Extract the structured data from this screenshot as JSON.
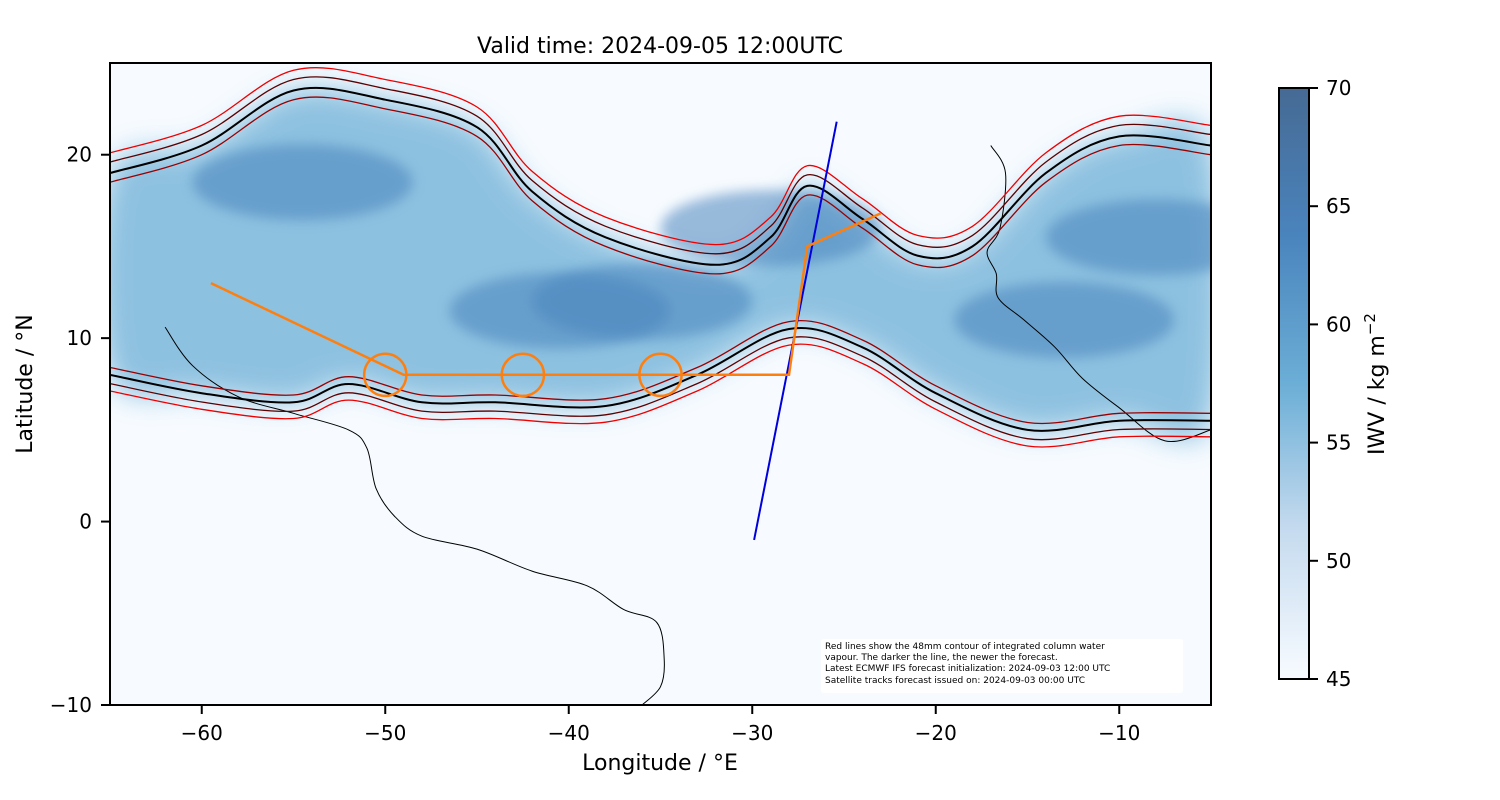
{
  "chart_data": {
    "type": "map",
    "title": "Valid time: 2024-09-05 12:00UTC",
    "xlabel": "Longitude / °E",
    "ylabel": "Latitude / °N",
    "xlim": [
      -65,
      -5
    ],
    "ylim": [
      -10,
      25
    ],
    "xticks": [
      -60,
      -50,
      -40,
      -30,
      -20,
      -10
    ],
    "xtick_labels": [
      "−60",
      "−50",
      "−40",
      "−30",
      "−20",
      "−10"
    ],
    "yticks": [
      -10,
      0,
      10,
      20
    ],
    "ytick_labels": [
      "−10",
      "0",
      "10",
      "20"
    ],
    "colorbar": {
      "label": "IWV / kg m",
      "label_sup": "−2",
      "min": 45,
      "max": 70,
      "ticks": [
        45,
        50,
        55,
        60,
        65,
        70
      ],
      "tick_labels": [
        "45",
        "50",
        "55",
        "60",
        "65",
        "70"
      ],
      "colormap": "Blues",
      "colors": [
        "#f7fbff",
        "#c6dbef",
        "#6baed6",
        "#4a84bd",
        "#466a94"
      ]
    },
    "flight_track": {
      "color": "#ff7f0e",
      "points": [
        [
          -59.5,
          13.0
        ],
        [
          -49.0,
          8.0
        ],
        [
          -28.0,
          8.0
        ],
        [
          -27.0,
          15.0
        ],
        [
          -23.0,
          16.8
        ]
      ],
      "circles": [
        [
          -50.0,
          8.0
        ],
        [
          -42.5,
          8.0
        ],
        [
          -35.0,
          8.0
        ]
      ],
      "circle_radius_deg": 1.15
    },
    "satellite_track": {
      "color": "#0000dd",
      "points": [
        [
          -29.9,
          -1.0
        ],
        [
          -25.4,
          21.8
        ]
      ]
    },
    "contour_colors": [
      "#000000",
      "#5c0000",
      "#990000",
      "#ee0000"
    ],
    "contour_level_mm": 48,
    "moist_band": {
      "north_edge": [
        [
          -65,
          19.0
        ],
        [
          -60,
          20.5
        ],
        [
          -55,
          23.5
        ],
        [
          -50,
          23.0
        ],
        [
          -45,
          21.5
        ],
        [
          -42,
          18.0
        ],
        [
          -38,
          15.5
        ],
        [
          -32,
          14.0
        ],
        [
          -29,
          15.5
        ],
        [
          -27,
          18.3
        ],
        [
          -24,
          16.5
        ],
        [
          -21,
          14.5
        ],
        [
          -18,
          15.0
        ],
        [
          -14,
          19.0
        ],
        [
          -10,
          21.0
        ],
        [
          -5,
          20.5
        ]
      ],
      "south_edge": [
        [
          -65,
          8.0
        ],
        [
          -60,
          7.0
        ],
        [
          -55,
          6.5
        ],
        [
          -52,
          7.5
        ],
        [
          -48,
          6.5
        ],
        [
          -44,
          6.5
        ],
        [
          -38,
          6.3
        ],
        [
          -33,
          8.0
        ],
        [
          -28,
          10.5
        ],
        [
          -24,
          9.5
        ],
        [
          -20,
          7.0
        ],
        [
          -15,
          5.0
        ],
        [
          -10,
          5.5
        ],
        [
          -5,
          5.5
        ]
      ],
      "cores": [
        [
          -54.5,
          18.5
        ],
        [
          -40.5,
          11.5
        ],
        [
          -36.0,
          12.0
        ],
        [
          -29.0,
          16.0
        ],
        [
          -13.0,
          11.0
        ],
        [
          -8.0,
          15.5
        ]
      ]
    },
    "annotation": [
      "Red lines show the 48mm contour of integrated column water",
      "vapour. The darker the line, the newer the forecast.",
      "Latest ECMWF IFS forecast initialization: 2024-09-03 12:00 UTC",
      "Satellite tracks forecast issued on: 2024-09-03 00:00 UTC"
    ]
  }
}
